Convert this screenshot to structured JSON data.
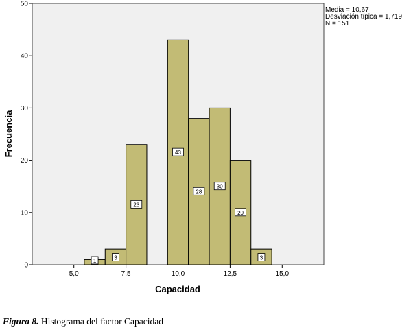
{
  "chart_data": {
    "type": "bar",
    "ylabel": "Frecuencia",
    "xlabel": "Capacidad",
    "bins": [
      {
        "x0": 5.5,
        "x1": 6.5,
        "count": 1
      },
      {
        "x0": 6.5,
        "x1": 7.5,
        "count": 3
      },
      {
        "x0": 7.5,
        "x1": 8.5,
        "count": 23
      },
      {
        "x0": 8.5,
        "x1": 9.5,
        "count": 0
      },
      {
        "x0": 9.5,
        "x1": 10.5,
        "count": 43
      },
      {
        "x0": 10.5,
        "x1": 11.5,
        "count": 28
      },
      {
        "x0": 11.5,
        "x1": 12.5,
        "count": 30
      },
      {
        "x0": 12.5,
        "x1": 13.5,
        "count": 20
      },
      {
        "x0": 13.5,
        "x1": 14.5,
        "count": 3
      }
    ],
    "xlim": [
      3.0,
      17.0
    ],
    "ylim": [
      0,
      50
    ],
    "xticks": [
      5.0,
      7.5,
      10.0,
      12.5,
      15.0
    ],
    "xtick_labels": [
      "5,0",
      "7,5",
      "10,0",
      "12,5",
      "15,0"
    ],
    "yticks": [
      0,
      10,
      20,
      30,
      40,
      50
    ],
    "ytick_labels": [
      "0",
      "10",
      "20",
      "30",
      "40",
      "50"
    ],
    "bar_color": "#c2bb75",
    "background_color": "#f0f0f0",
    "grid": false,
    "data_labels": true
  },
  "stats": {
    "mean": "Media = 10,67",
    "std": "Desviación típica = 1,719",
    "n": "N = 151"
  },
  "caption": {
    "figure_label": "Figura 8.",
    "text": " Histograma del factor Capacidad"
  }
}
